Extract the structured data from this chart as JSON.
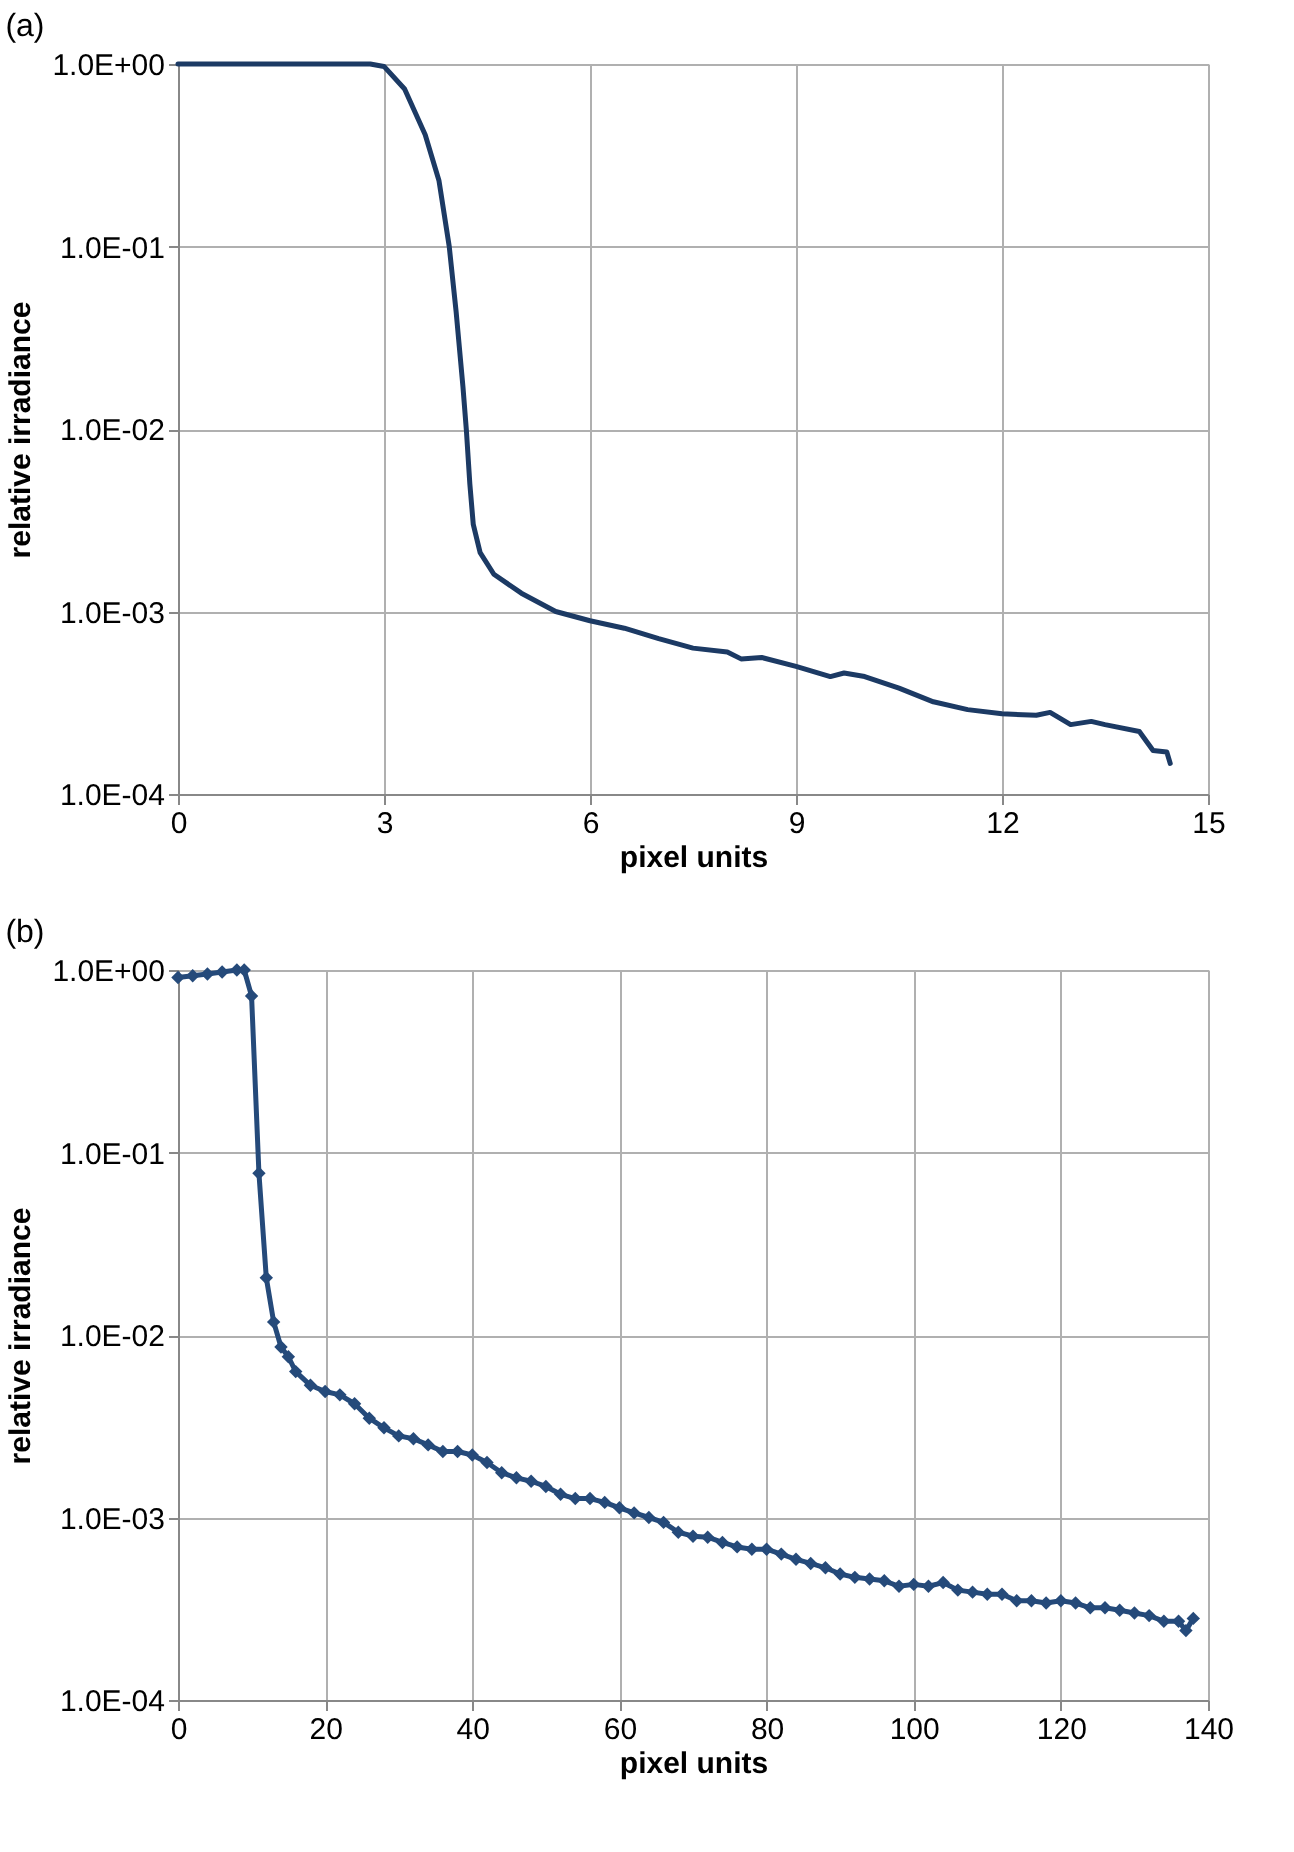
{
  "chart_data": [
    {
      "type": "line",
      "title": "(a)",
      "xlabel": "pixel units",
      "ylabel": "relative irradiance",
      "log": true,
      "grid": true,
      "marker": "none",
      "line_style": "solid",
      "xlim": [
        0,
        15
      ],
      "xticks": [
        0,
        3,
        6,
        9,
        12,
        15
      ],
      "ylim": [
        0.0001,
        1
      ],
      "yticks": [
        {
          "value": 1,
          "label": "1.0E+00"
        },
        {
          "value": 0.1,
          "label": "1.0E-01"
        },
        {
          "value": 0.01,
          "label": "1.0E-02"
        },
        {
          "value": 0.001,
          "label": "1.0E-03"
        },
        {
          "value": 0.0001,
          "label": "1.0E-04"
        }
      ],
      "series": [
        {
          "color": "#1c3a64",
          "x": [
            0,
            1,
            2,
            2.8,
            3.0,
            3.3,
            3.6,
            3.8,
            3.95,
            4.05,
            4.15,
            4.2,
            4.25,
            4.3,
            4.4,
            4.6,
            5,
            5.5,
            6,
            6.5,
            7,
            7.5,
            8,
            8.2,
            8.5,
            9,
            9.5,
            9.7,
            10,
            10.5,
            11,
            11.5,
            12,
            12.5,
            12.7,
            13,
            13.3,
            13.5,
            14,
            14.2,
            14.4,
            14.45
          ],
          "values": [
            1,
            1,
            1,
            1,
            0.97,
            0.73,
            0.41,
            0.23,
            0.1,
            0.044,
            0.017,
            0.0098,
            0.005,
            0.003,
            0.0021,
            0.0016,
            0.00126,
            0.001,
            0.00089,
            0.00081,
            0.00071,
            0.00063,
            0.0006,
            0.00055,
            0.00056,
            0.0005,
            0.00044,
            0.00046,
            0.00044,
            0.00038,
            0.00032,
            0.00029,
            0.000275,
            0.00027,
            0.00028,
            0.00024,
            0.00025,
            0.00024,
            0.00022,
            0.000173,
            0.00017,
            0.000147
          ]
        }
      ]
    },
    {
      "type": "line",
      "title": "(b)",
      "xlabel": "pixel units",
      "ylabel": "relative irradiance",
      "log": true,
      "grid": true,
      "marker": "diamond",
      "line_style": "solid",
      "xlim": [
        0,
        140
      ],
      "xticks": [
        0,
        20,
        40,
        60,
        80,
        100,
        120,
        140
      ],
      "ylim": [
        0.0001,
        1
      ],
      "yticks": [
        {
          "value": 1,
          "label": "1.0E+00"
        },
        {
          "value": 0.1,
          "label": "1.0E-01"
        },
        {
          "value": 0.01,
          "label": "1.0E-02"
        },
        {
          "value": 0.001,
          "label": "1.0E-03"
        },
        {
          "value": 0.0001,
          "label": "1.0E-04"
        }
      ],
      "series": [
        {
          "color": "#254a7a",
          "x": [
            0,
            2,
            4,
            6,
            8,
            9,
            10,
            11,
            12,
            13,
            14,
            15,
            16,
            18,
            20,
            22,
            24,
            26,
            28,
            30,
            32,
            34,
            36,
            38,
            40,
            42,
            44,
            46,
            48,
            50,
            52,
            54,
            56,
            58,
            60,
            62,
            64,
            66,
            68,
            70,
            72,
            74,
            76,
            78,
            80,
            82,
            84,
            86,
            88,
            90,
            92,
            94,
            96,
            98,
            100,
            102,
            104,
            106,
            108,
            110,
            112,
            114,
            116,
            118,
            120,
            122,
            124,
            126,
            128,
            130,
            132,
            134,
            136,
            137,
            138
          ],
          "values": [
            0.91,
            0.93,
            0.95,
            0.975,
            1.0,
            1.0,
            0.72,
            0.077,
            0.0206,
            0.0118,
            0.0086,
            0.0076,
            0.0063,
            0.0053,
            0.0049,
            0.0047,
            0.0042,
            0.0035,
            0.0031,
            0.0028,
            0.0027,
            0.0025,
            0.0023,
            0.0023,
            0.0022,
            0.002,
            0.00176,
            0.00165,
            0.00158,
            0.00148,
            0.00134,
            0.00127,
            0.00127,
            0.00121,
            0.00113,
            0.00106,
            0.001,
            0.00094,
            0.00083,
            0.00079,
            0.00078,
            0.00073,
            0.00069,
            0.00067,
            0.00067,
            0.00063,
            0.00059,
            0.00056,
            0.00053,
            0.00049,
            0.00047,
            0.00046,
            0.00045,
            0.00042,
            0.00043,
            0.00042,
            0.00044,
            0.0004,
            0.00039,
            0.00038,
            0.00038,
            0.00035,
            0.00035,
            0.00034,
            0.00035,
            0.00034,
            0.00032,
            0.00032,
            0.00031,
            0.0003,
            0.00029,
            0.00027,
            0.00027,
            0.00024,
            0.00028
          ]
        }
      ]
    }
  ]
}
